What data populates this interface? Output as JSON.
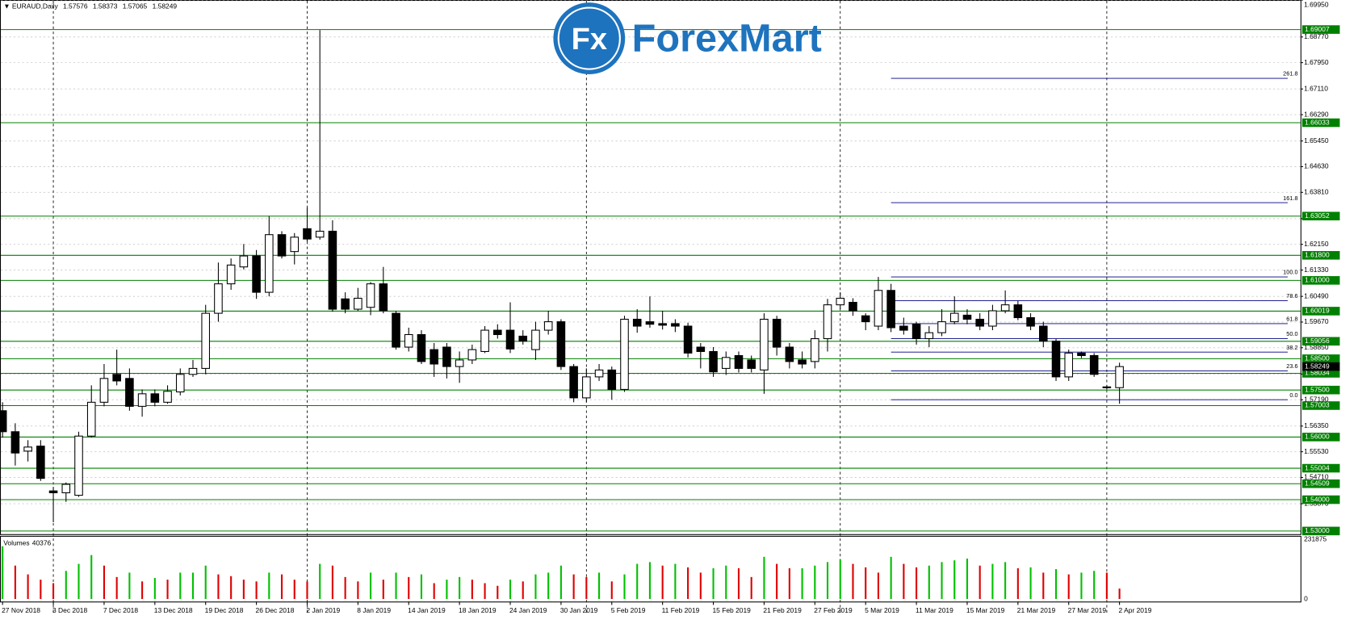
{
  "logo": {
    "icon": "Fx",
    "name": "ForexMart"
  },
  "chart_data": {
    "type": "candlestick",
    "title": "EURAUD,Daily",
    "categories": [
      "27 Nov 2018",
      null,
      null,
      null,
      "3 Dec 2018",
      null,
      null,
      null,
      "7 Dec 2018",
      null,
      null,
      null,
      "13 Dec 2018",
      null,
      null,
      null,
      "19 Dec 2018",
      null,
      null,
      null,
      "26 Dec 2018",
      null,
      null,
      null,
      "2 Jan 2019",
      null,
      null,
      null,
      "8 Jan 2019",
      null,
      null,
      null,
      "14 Jan 2019",
      null,
      null,
      null,
      "18 Jan 2019",
      null,
      null,
      null,
      "24 Jan 2019",
      null,
      null,
      null,
      "30 Jan 2019",
      null,
      null,
      null,
      "5 Feb 2019",
      null,
      null,
      null,
      "11 Feb 2019",
      null,
      null,
      null,
      "15 Feb 2019",
      null,
      null,
      null,
      "21 Feb 2019",
      null,
      null,
      null,
      "27 Feb 2019",
      null,
      null,
      null,
      "5 Mar 2019",
      null,
      null,
      null,
      "11 Mar 2019",
      null,
      null,
      null,
      "15 Mar 2019",
      null,
      null,
      null,
      "21 Mar 2019",
      null,
      null,
      null,
      "27 Mar 2019",
      null,
      null,
      null,
      "2 Apr 2019"
    ],
    "open": [
      1.5684,
      1.5617,
      1.5555,
      1.5571,
      1.5428,
      1.5422,
      1.5414,
      1.5603,
      1.5711,
      1.58,
      1.5787,
      1.5698,
      1.5738,
      1.5711,
      1.5744,
      1.58,
      1.5819,
      1.5995,
      1.6089,
      1.6143,
      1.6178,
      1.6062,
      1.6246,
      1.6192,
      1.6265,
      1.6238,
      1.6257,
      1.6041,
      1.6008,
      1.6014,
      1.6089,
      1.5995,
      1.5887,
      1.5927,
      1.5879,
      1.5887,
      1.5825,
      1.5846,
      1.5873,
      1.5941,
      1.5941,
      1.5922,
      1.5879,
      1.5941,
      1.5968,
      1.5825,
      1.5725,
      1.5792,
      1.5814,
      1.5752,
      1.5976,
      1.5968,
      1.5962,
      1.5962,
      1.5954,
      1.5887,
      1.5873,
      1.5819,
      1.586,
      1.5846,
      1.5814,
      1.5976,
      1.5887,
      1.5846,
      1.5841,
      1.5914,
      1.6022,
      1.603,
      1.5987,
      1.5954,
      1.6068,
      1.5954,
      1.596,
      1.5914,
      1.5933,
      1.5968,
      1.5989,
      1.5976,
      1.5954,
      1.6003,
      1.6022,
      1.5981,
      1.5954,
      1.5906,
      1.5792,
      1.5868,
      1.586,
      1.576,
      1.57576
    ],
    "high": [
      1.5711,
      1.5644,
      1.559,
      1.559,
      1.5441,
      1.5455,
      1.5617,
      1.5765,
      1.5833,
      1.5879,
      1.5819,
      1.5752,
      1.5752,
      1.5765,
      1.5819,
      1.5846,
      1.6022,
      1.6157,
      1.617,
      1.6216,
      1.6197,
      1.6305,
      1.6257,
      1.6251,
      1.6332,
      1.6899,
      1.6292,
      1.6062,
      1.6076,
      1.6095,
      1.6143,
      1.6003,
      1.5949,
      1.5941,
      1.59,
      1.59,
      1.5873,
      1.5895,
      1.5954,
      1.596,
      1.603,
      1.5941,
      1.5968,
      1.6003,
      1.5976,
      1.5833,
      1.5819,
      1.5833,
      1.5825,
      1.5987,
      1.6008,
      1.6049,
      1.6003,
      1.5976,
      1.5965,
      1.59,
      1.5887,
      1.5873,
      1.5873,
      1.586,
      1.5995,
      1.5987,
      1.59,
      1.5873,
      1.5941,
      1.6041,
      1.6062,
      1.6043,
      1.5995,
      1.6111,
      1.6089,
      1.5981,
      1.5968,
      1.5954,
      1.6008,
      1.6049,
      1.6008,
      1.5995,
      1.6022,
      1.6068,
      1.6035,
      1.5995,
      1.5968,
      1.5914,
      1.5879,
      1.5873,
      1.5868,
      1.5765,
      1.58373
    ],
    "low": [
      1.5598,
      1.5509,
      1.5522,
      1.546,
      1.5328,
      1.5393,
      1.5409,
      1.5598,
      1.5698,
      1.5765,
      1.5684,
      1.5665,
      1.5698,
      1.5706,
      1.5733,
      1.5792,
      1.58,
      1.5968,
      1.607,
      1.6135,
      1.6041,
      1.6049,
      1.617,
      1.6151,
      1.6224,
      1.623,
      1.6,
      1.5995,
      1.6003,
      1.5989,
      1.5995,
      1.5879,
      1.5873,
      1.5833,
      1.5792,
      1.5787,
      1.5773,
      1.5833,
      1.5868,
      1.5914,
      1.5868,
      1.5895,
      1.5846,
      1.5927,
      1.5814,
      1.5711,
      1.5711,
      1.5779,
      1.5719,
      1.5744,
      1.5933,
      1.5949,
      1.5943,
      1.5935,
      1.5854,
      1.5819,
      1.5792,
      1.5798,
      1.5806,
      1.5806,
      1.5738,
      1.586,
      1.5819,
      1.5819,
      1.5819,
      1.5873,
      1.6008,
      1.5987,
      1.5941,
      1.5941,
      1.5935,
      1.5927,
      1.5895,
      1.5887,
      1.5922,
      1.596,
      1.596,
      1.5941,
      1.5941,
      1.5995,
      1.5973,
      1.5941,
      1.5887,
      1.5779,
      1.5779,
      1.5852,
      1.5792,
      1.5752,
      1.57065
    ],
    "close": [
      1.5617,
      1.5549,
      1.5568,
      1.5468,
      1.5422,
      1.5449,
      1.5603,
      1.5711,
      1.5787,
      1.5779,
      1.5698,
      1.5738,
      1.5711,
      1.5746,
      1.58,
      1.5819,
      1.5995,
      1.6089,
      1.6149,
      1.6178,
      1.6062,
      1.6246,
      1.6178,
      1.6238,
      1.6232,
      1.6257,
      1.6008,
      1.6008,
      1.6043,
      1.6089,
      1.6003,
      1.5887,
      1.5927,
      1.5841,
      1.5833,
      1.5825,
      1.5846,
      1.5879,
      1.5941,
      1.5927,
      1.5881,
      1.5906,
      1.5941,
      1.5968,
      1.5825,
      1.5725,
      1.5792,
      1.5814,
      1.5752,
      1.5976,
      1.5954,
      1.596,
      1.5957,
      1.5954,
      1.5868,
      1.5873,
      1.5808,
      1.5854,
      1.5819,
      1.5819,
      1.5976,
      1.5887,
      1.5841,
      1.5833,
      1.5914,
      1.6022,
      1.6043,
      1.6003,
      1.5968,
      1.6068,
      1.5949,
      1.5941,
      1.5914,
      1.5933,
      1.5968,
      1.5995,
      1.5976,
      1.5954,
      1.6003,
      1.6022,
      1.5981,
      1.5954,
      1.5906,
      1.5792,
      1.5868,
      1.586,
      1.58,
      1.576,
      1.58249
    ],
    "up_color": "#ffffff",
    "down_color": "#000000",
    "ylim": [
      1.529,
      1.6995
    ],
    "yticks": [
      {
        "value": 1.6995,
        "label": "1.69950"
      },
      {
        "value": 1.6877,
        "label": "1.68770"
      },
      {
        "value": 1.6795,
        "label": "1.67950"
      },
      {
        "value": 1.6711,
        "label": "1.67110"
      },
      {
        "value": 1.6629,
        "label": "1.66290"
      },
      {
        "value": 1.6545,
        "label": "1.65450"
      },
      {
        "value": 1.6463,
        "label": "1.64630"
      },
      {
        "value": 1.6381,
        "label": "1.63810"
      },
      {
        "value": 1.6297,
        "label": "1.62970"
      },
      {
        "value": 1.6215,
        "label": "1.62150"
      },
      {
        "value": 1.6133,
        "label": "1.61330"
      },
      {
        "value": 1.6049,
        "label": "1.60490"
      },
      {
        "value": 1.5967,
        "label": "1.59670"
      },
      {
        "value": 1.5885,
        "label": "1.58850"
      },
      {
        "value": 1.5801,
        "label": "1.58010"
      },
      {
        "value": 1.5719,
        "label": "1.57190"
      },
      {
        "value": 1.5635,
        "label": "1.56350"
      },
      {
        "value": 1.5553,
        "label": "1.55530"
      },
      {
        "value": 1.5471,
        "label": "1.54710"
      },
      {
        "value": 1.5387,
        "label": "1.53870"
      }
    ],
    "grid": true,
    "levels": {
      "color": "#008000",
      "values": [
        1.69007,
        1.66033,
        1.63052,
        {
          "value": 1.618,
          "label": "1.61800"
        },
        {
          "value": 1.61,
          "label": "1.61000"
        },
        1.60019,
        1.59056,
        {
          "value": 1.585,
          "label": "1.58500"
        },
        1.58034,
        {
          "value": 1.575,
          "label": "1.57500"
        },
        1.57003,
        {
          "value": 1.56,
          "label": "1.56000"
        },
        1.55004,
        1.54509,
        {
          "value": 1.54,
          "label": "1.54000"
        },
        {
          "value": 1.53,
          "label": "1.53000"
        }
      ]
    },
    "fibonacci": {
      "color": "#000080",
      "levels": [
        {
          "value": 1.6745,
          "label": "261.8"
        },
        {
          "value": 1.6348,
          "label": "161.8"
        },
        {
          "value": 1.6111,
          "label": "100.0"
        },
        {
          "value": 1.6035,
          "label": "78.6"
        },
        {
          "value": 1.5962,
          "label": "61.8"
        },
        {
          "value": 1.5914,
          "label": "50.0"
        },
        {
          "value": 1.5871,
          "label": "38.2"
        },
        {
          "value": 1.5811,
          "label": "23.6"
        },
        {
          "value": 1.5719,
          "label": "0.0"
        }
      ]
    },
    "volume": {
      "label": "Volumes",
      "up_color": "#00c000",
      "down_color": "#e00000",
      "values": [
        204600,
        129580,
        95480,
        75020,
        61380,
        109120,
        136400,
        170500,
        129580,
        85250,
        102300,
        68200,
        81840,
        75020,
        102300,
        102300,
        129580,
        95480,
        88660,
        75020,
        68200,
        102300,
        95480,
        75020,
        68200,
        136400,
        129580,
        85250,
        68200,
        102300,
        75020,
        102300,
        85250,
        95480,
        61380,
        75020,
        85250,
        75020,
        61380,
        51150,
        75020,
        68200,
        95480,
        102300,
        129580,
        95480,
        85250,
        102300,
        68200,
        95480,
        136400,
        143220,
        129580,
        136400,
        122760,
        102300,
        119350,
        129580,
        119350,
        85250,
        163680,
        136400,
        119350,
        119350,
        129580,
        143220,
        153450,
        136400,
        122760,
        102300,
        163680,
        136400,
        122760,
        129580,
        143220,
        150040,
        156860,
        129580,
        136400,
        143220,
        119350,
        122760,
        102300,
        115940,
        95480,
        102300,
        109120,
        102300,
        40376
      ],
      "ylim": [
        0,
        231875
      ],
      "yticks": [
        231875,
        0
      ]
    }
  }
}
